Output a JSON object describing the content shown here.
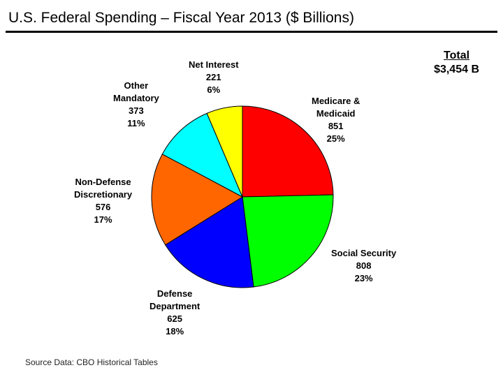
{
  "title": "U.S. Federal Spending – Fiscal Year 2013 ($ Billions)",
  "total": {
    "label": "Total",
    "value": "$3,454 B"
  },
  "source": "Source Data: CBO Historical Tables",
  "chart_data": {
    "type": "pie",
    "title": "U.S. Federal Spending – Fiscal Year 2013 ($ Billions)",
    "slices": [
      {
        "name": "Medicare & Medicaid",
        "name_lines": [
          "Medicare &",
          "Medicaid"
        ],
        "value": 851,
        "percent": "25%",
        "color": "#ff0000"
      },
      {
        "name": "Social Security",
        "name_lines": [
          "Social Security"
        ],
        "value": 808,
        "percent": "23%",
        "color": "#00ff00"
      },
      {
        "name": "Defense Department",
        "name_lines": [
          "Defense",
          "Department"
        ],
        "value": 625,
        "percent": "18%",
        "color": "#0000ff"
      },
      {
        "name": "Non-Defense Discretionary",
        "name_lines": [
          "Non-Defense",
          "Discretionary"
        ],
        "value": 576,
        "percent": "17%",
        "color": "#ff6600"
      },
      {
        "name": "Other Mandatory",
        "name_lines": [
          "Other",
          "Mandatory"
        ],
        "value": 373,
        "percent": "11%",
        "color": "#00ffff"
      },
      {
        "name": "Net Interest",
        "name_lines": [
          "Net Interest"
        ],
        "value": 221,
        "percent": "6%",
        "color": "#ffff00"
      }
    ]
  }
}
